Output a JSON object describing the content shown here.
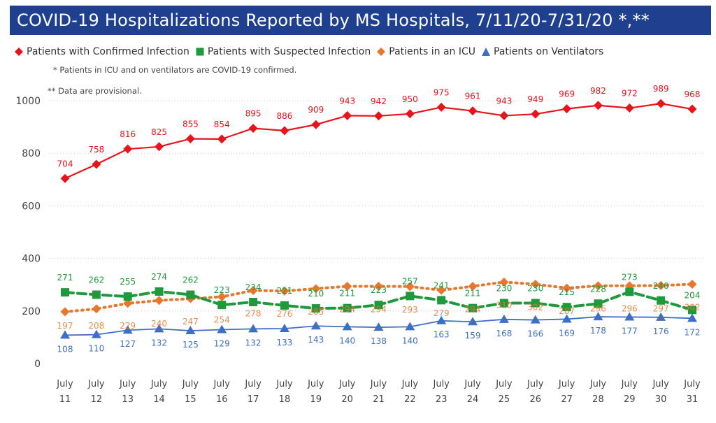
{
  "title": "COVID-19 Hospitalizations Reported by MS Hospitals, 7/11/20-7/31/20 *,**",
  "notes": {
    "icu_note": "* Patients in ICU and on ventilators are COVID-19 confirmed.",
    "provisional_note": "** Data are provisional."
  },
  "colors": {
    "confirmed": "#e8141c",
    "suspected": "#1e9a3c",
    "icu": "#e8772e",
    "ventilator": "#3f6fc4",
    "title_bg": "#1f3f8f"
  },
  "chart_data": {
    "type": "line",
    "title": "COVID-19 Hospitalizations Reported by MS Hospitals, 7/11/20-7/31/20 *,**",
    "xlabel": "",
    "ylabel": "",
    "ylim": [
      0,
      1000
    ],
    "yticks": [
      0,
      200,
      400,
      600,
      800,
      1000
    ],
    "grid": true,
    "legend_position": "top-left",
    "categories": [
      "July 11",
      "July 12",
      "July 13",
      "July 14",
      "July 15",
      "July 16",
      "July 17",
      "July 18",
      "July 19",
      "July 20",
      "July 21",
      "July 22",
      "July 23",
      "July 24",
      "July 25",
      "July 26",
      "July 27",
      "July 28",
      "July 29",
      "July 30",
      "July 31"
    ],
    "x_months": [
      "July",
      "July",
      "July",
      "July",
      "July",
      "July",
      "July",
      "July",
      "July",
      "July",
      "July",
      "July",
      "July",
      "July",
      "July",
      "July",
      "July",
      "July",
      "July",
      "July",
      "July"
    ],
    "x_days": [
      "11",
      "12",
      "13",
      "14",
      "15",
      "16",
      "17",
      "18",
      "19",
      "20",
      "21",
      "22",
      "23",
      "24",
      "25",
      "26",
      "27",
      "28",
      "29",
      "30",
      "31"
    ],
    "series": [
      {
        "key": "confirmed",
        "name": "Patients with Confirmed Infection",
        "marker": "diamond",
        "style": "solid",
        "values": [
          704,
          758,
          816,
          825,
          855,
          854,
          895,
          886,
          909,
          943,
          942,
          950,
          975,
          961,
          943,
          949,
          969,
          982,
          972,
          989,
          968
        ]
      },
      {
        "key": "suspected",
        "name": "Patients with Suspected Infection",
        "marker": "square",
        "style": "dashed",
        "values": [
          271,
          262,
          255,
          274,
          262,
          223,
          234,
          221,
          210,
          211,
          223,
          257,
          241,
          211,
          230,
          230,
          215,
          228,
          273,
          240,
          204
        ]
      },
      {
        "key": "icu",
        "name": "Patients in an ICU",
        "marker": "diamond",
        "style": "dotted",
        "values": [
          197,
          208,
          229,
          240,
          247,
          254,
          278,
          276,
          285,
          294,
          294,
          293,
          279,
          294,
          310,
          302,
          287,
          296,
          296,
          297,
          302
        ]
      },
      {
        "key": "ventilator",
        "name": "Patients on Ventilators",
        "marker": "triangle",
        "style": "solid",
        "values": [
          108,
          110,
          127,
          132,
          125,
          129,
          132,
          133,
          143,
          140,
          138,
          140,
          163,
          159,
          168,
          166,
          169,
          178,
          177,
          176,
          172
        ]
      }
    ]
  }
}
